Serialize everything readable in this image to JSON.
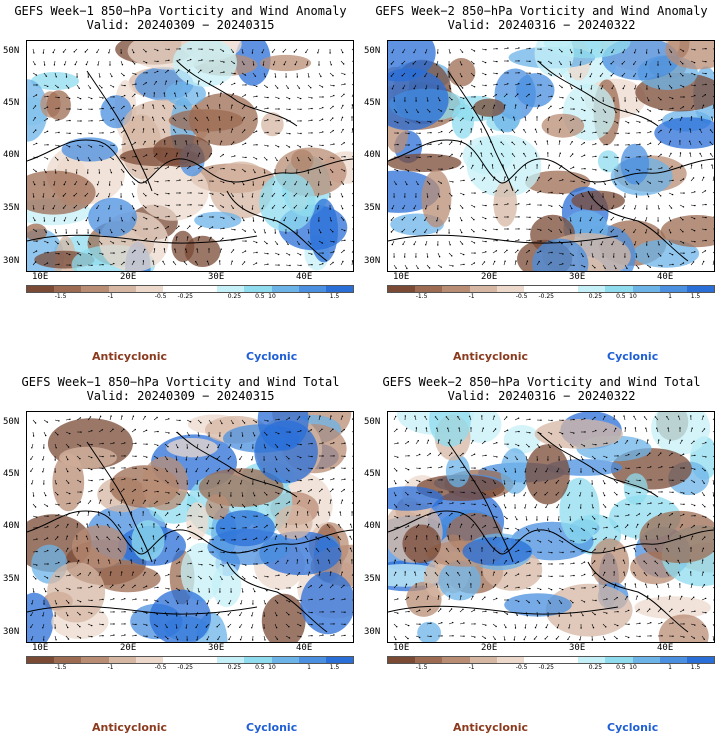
{
  "panels": [
    {
      "title": "GEFS Week−1 850−hPa Vorticity and Wind Anomaly",
      "valid": "Valid: 20240309 − 20240315"
    },
    {
      "title": "GEFS Week−2 850−hPa Vorticity and Wind Anomaly",
      "valid": "Valid: 20240316 − 20240322"
    },
    {
      "title": "GEFS Week−1 850−hPa Vorticity and Wind Total",
      "valid": "Valid: 20240309 − 20240315"
    },
    {
      "title": "GEFS Week−2 850−hPa Vorticity and Wind Total",
      "valid": "Valid: 20240316 − 20240322"
    }
  ],
  "axes": {
    "lat_labels": [
      "50N",
      "45N",
      "40N",
      "35N",
      "30N"
    ],
    "lon_labels": [
      "10E",
      "20E",
      "30E",
      "40E"
    ]
  },
  "colorbar": {
    "ticks": [
      "-1.5",
      "-1",
      "-0.5",
      "-0.25",
      "0.25",
      "0.5",
      "1",
      "1.5"
    ],
    "colors": [
      "#7a4a35",
      "#9c6b52",
      "#b98c74",
      "#d6b7a3",
      "#ecd9cc",
      "#ffffff",
      "#ffffff",
      "#c6f0f7",
      "#8fdcef",
      "#6cb3e8",
      "#4a8fe0",
      "#2a6fd8"
    ],
    "scale_label": "10"
  },
  "legend": {
    "anticyclonic": "Anticyclonic",
    "cyclonic": "Cyclonic",
    "anticyclonic_color": "#8b3a1e",
    "cyclonic_color": "#1f5fd6"
  }
}
